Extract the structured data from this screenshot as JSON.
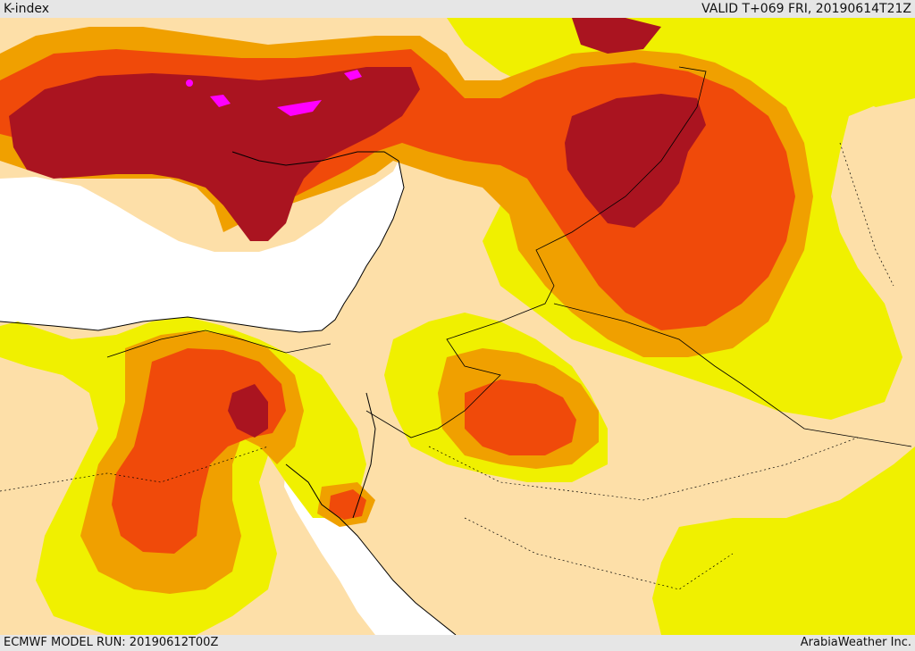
{
  "header": {
    "title": "K-index",
    "valid": "VALID T+069 FRI, 20190614T21Z"
  },
  "footer": {
    "model_run": "ECMWF MODEL RUN: 20190612T00Z",
    "credit": "ArabiaWeather Inc."
  },
  "colors": {
    "land_base": "#fddfa8",
    "sea": "#ffffff",
    "band_yellow": "#f0f000",
    "band_light_orange": "#f0a000",
    "band_orange_red": "#f04a0a",
    "band_dark_red": "#aa1420",
    "band_magenta": "#ff00ff",
    "lines": "#000000"
  }
}
